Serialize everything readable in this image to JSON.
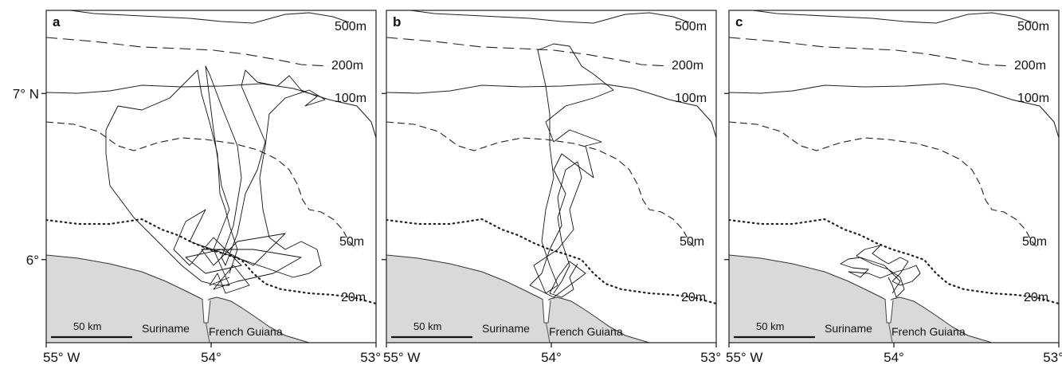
{
  "panels": [
    {
      "letter": "a",
      "track": "a"
    },
    {
      "letter": "b",
      "track": "b"
    },
    {
      "letter": "c",
      "track": "c"
    }
  ],
  "axes": {
    "lat_ticks": [
      {
        "value": 7,
        "label": "7° N",
        "show_on": [
          0
        ]
      },
      {
        "value": 6,
        "label": "6°",
        "show_on": [
          0
        ]
      }
    ],
    "lon_ticks": [
      {
        "value": -55,
        "label": "55° W"
      },
      {
        "value": -54,
        "label": "54°"
      },
      {
        "value": -53,
        "label": "53°"
      }
    ],
    "lon_range": [
      -55,
      -53
    ],
    "lat_range": [
      5.5,
      7.5
    ]
  },
  "isobaths": [
    {
      "label": "500m",
      "style": "solid"
    },
    {
      "label": "200m",
      "style": "long-dash"
    },
    {
      "label": "100m",
      "style": "solid"
    },
    {
      "label": "50m",
      "style": "short-dash"
    },
    {
      "label": "20m",
      "style": "dotted"
    }
  ],
  "places": {
    "suriname": "Suriname",
    "french_guiana": "French Guiana"
  },
  "scale_bar": {
    "label": "50 km"
  },
  "colors": {
    "land": "#d9d9d9",
    "track": "#111111",
    "frame": "#222222"
  }
}
